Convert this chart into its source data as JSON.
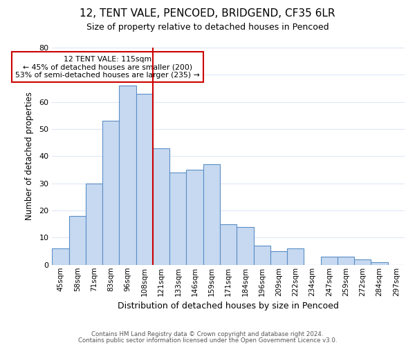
{
  "title1": "12, TENT VALE, PENCOED, BRIDGEND, CF35 6LR",
  "title2": "Size of property relative to detached houses in Pencoed",
  "xlabel": "Distribution of detached houses by size in Pencoed",
  "ylabel": "Number of detached properties",
  "categories": [
    "45sqm",
    "58sqm",
    "71sqm",
    "83sqm",
    "96sqm",
    "108sqm",
    "121sqm",
    "133sqm",
    "146sqm",
    "159sqm",
    "171sqm",
    "184sqm",
    "196sqm",
    "209sqm",
    "222sqm",
    "234sqm",
    "247sqm",
    "259sqm",
    "272sqm",
    "284sqm",
    "297sqm"
  ],
  "values": [
    6,
    18,
    30,
    53,
    66,
    63,
    43,
    34,
    35,
    37,
    15,
    14,
    7,
    5,
    6,
    0,
    3,
    3,
    2,
    1,
    0
  ],
  "bar_color": "#c6d9f1",
  "bar_edge_color": "#5a8ec5",
  "vline_x": 5.5,
  "vline_color": "#cc0000",
  "annotation_text": "12 TENT VALE: 115sqm\n← 45% of detached houses are smaller (200)\n53% of semi-detached houses are larger (235) →",
  "annotation_box_edge": "#cc0000",
  "ylim": [
    0,
    80
  ],
  "yticks": [
    0,
    10,
    20,
    30,
    40,
    50,
    60,
    70,
    80
  ],
  "footer1": "Contains HM Land Registry data © Crown copyright and database right 2024.",
  "footer2": "Contains public sector information licensed under the Open Government Licence v3.0.",
  "background_color": "#ffffff",
  "grid_color": "#dde8f5"
}
